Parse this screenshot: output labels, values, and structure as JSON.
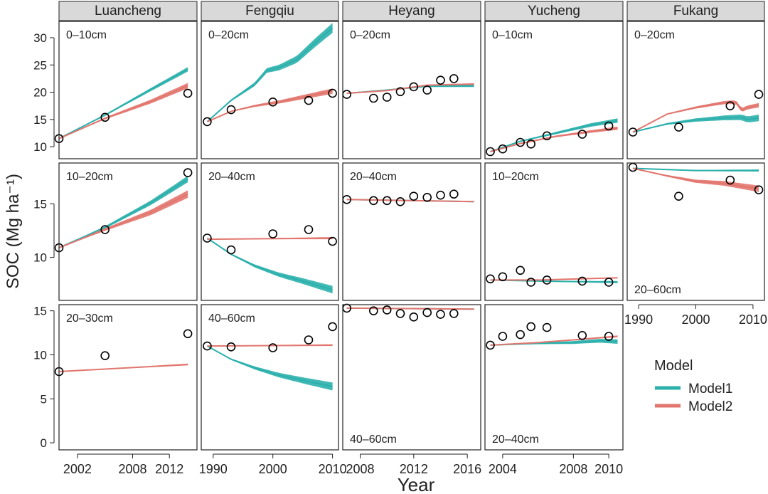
{
  "colors": {
    "model1": "#2BB0AC",
    "model2": "#E2766E",
    "strip_bg": "#D9D9D9",
    "obs": "#000000"
  },
  "axis_title_y": "SOC (Mg ha⁻¹)",
  "axis_title_x": "Year",
  "legend": {
    "title": "Model",
    "items": [
      "Model1",
      "Model2"
    ]
  },
  "chart_data": {
    "type": "line",
    "facets": [
      "Luancheng",
      "Fengqiu",
      "Heyang",
      "Yucheng",
      "Fukang"
    ],
    "columns": [
      {
        "site": "Luancheng",
        "xlim": [
          2000,
          2015
        ],
        "xticks": [
          2002,
          2008,
          2012
        ]
      },
      {
        "site": "Fengqiu",
        "xlim": [
          1988,
          2011
        ],
        "xticks": [
          1990,
          2000,
          2010
        ]
      },
      {
        "site": "Heyang",
        "xlim": [
          2006.7,
          2017
        ],
        "xticks": [
          2008,
          2012,
          2016
        ]
      },
      {
        "site": "Yucheng",
        "xlim": [
          2003,
          2010.8
        ],
        "xticks": [
          2004,
          2008,
          2010
        ]
      },
      {
        "site": "Fukang",
        "xlim": [
          1988,
          2012
        ],
        "xticks": [
          1990,
          2000,
          2010
        ]
      }
    ],
    "rows": [
      {
        "ylim": [
          7.8,
          33
        ],
        "yticks": [
          10,
          15,
          20,
          25,
          30
        ]
      },
      {
        "ylim": [
          6,
          18.8
        ],
        "yticks": [
          10,
          15
        ]
      },
      {
        "ylim": [
          -0.8,
          15.7
        ],
        "yticks": [
          0,
          5,
          10,
          15
        ]
      }
    ],
    "panels": [
      {
        "site": "Luancheng",
        "row": 0,
        "depth": "0–10cm",
        "depth_pos": "top",
        "model1": {
          "x": [
            2000,
            2005,
            2010,
            2014
          ],
          "y": [
            11.5,
            15.8,
            20.5,
            24.2
          ],
          "band": 0.4
        },
        "model2": {
          "x": [
            2000,
            2005,
            2010,
            2014
          ],
          "y": [
            11.5,
            15.2,
            18.3,
            21.2
          ],
          "band": 0.5
        },
        "observed": {
          "x": [
            2000,
            2005,
            2014
          ],
          "y": [
            11.5,
            15.4,
            19.8
          ]
        }
      },
      {
        "site": "Luancheng",
        "row": 1,
        "depth": "10–20cm",
        "depth_pos": "top",
        "model1": {
          "x": [
            2000,
            2005,
            2010,
            2014
          ],
          "y": [
            10.9,
            12.8,
            15.1,
            17.3
          ],
          "band": 0.3
        },
        "model2": {
          "x": [
            2000,
            2005,
            2010,
            2014
          ],
          "y": [
            10.9,
            12.6,
            14.2,
            15.9
          ],
          "band": 0.35
        },
        "observed": {
          "x": [
            2000,
            2005,
            2014
          ],
          "y": [
            10.9,
            12.6,
            17.9
          ]
        }
      },
      {
        "site": "Luancheng",
        "row": 2,
        "depth": "20–30cm",
        "depth_pos": "top",
        "model2": {
          "x": [
            2000,
            2014
          ],
          "y": [
            8.1,
            8.9
          ],
          "band": 0.1
        },
        "observed": {
          "x": [
            2000,
            2005,
            2014
          ],
          "y": [
            8.1,
            9.9,
            12.4
          ]
        }
      },
      {
        "site": "Fengqiu",
        "row": 0,
        "depth": "0–20cm",
        "depth_pos": "top",
        "model1": {
          "x": [
            1989,
            1993,
            1997,
            1999,
            2001,
            2004,
            2007,
            2010
          ],
          "y": [
            14.6,
            18.5,
            21.5,
            24,
            24.5,
            26,
            29,
            31.8
          ],
          "band": 0.9
        },
        "model2": {
          "x": [
            1989,
            1993,
            1997,
            2001,
            2005,
            2010
          ],
          "y": [
            14.6,
            16.5,
            17.5,
            18.2,
            19.1,
            20.2
          ],
          "band": 0.5
        },
        "observed": {
          "x": [
            1989,
            1993,
            2000,
            2006,
            2010
          ],
          "y": [
            14.6,
            16.8,
            18.2,
            18.5,
            19.8
          ]
        }
      },
      {
        "site": "Fengqiu",
        "row": 1,
        "depth": "20–40cm",
        "depth_pos": "top",
        "model1": {
          "x": [
            1989,
            1993,
            1997,
            2001,
            2005,
            2010
          ],
          "y": [
            11.8,
            10.3,
            9.2,
            8.4,
            7.8,
            7.0
          ],
          "band": 0.35
        },
        "model2": {
          "x": [
            1989,
            2010
          ],
          "y": [
            11.7,
            11.8
          ],
          "band": 0.1
        },
        "observed": {
          "x": [
            1989,
            1993,
            2000,
            2006,
            2010
          ],
          "y": [
            11.8,
            10.7,
            12.2,
            12.6,
            11.5
          ]
        }
      },
      {
        "site": "Fengqiu",
        "row": 2,
        "depth": "40–60cm",
        "depth_pos": "top",
        "model1": {
          "x": [
            1989,
            1993,
            1997,
            2001,
            2005,
            2010
          ],
          "y": [
            11.0,
            9.5,
            8.5,
            7.7,
            7.1,
            6.4
          ],
          "band": 0.45
        },
        "model2": {
          "x": [
            1989,
            2010
          ],
          "y": [
            11.0,
            11.1
          ],
          "band": 0.1
        },
        "observed": {
          "x": [
            1989,
            1993,
            2000,
            2006,
            2010
          ],
          "y": [
            11.0,
            10.9,
            10.8,
            11.7,
            13.2
          ]
        }
      },
      {
        "site": "Heyang",
        "row": 0,
        "depth": "0–20cm",
        "depth_pos": "top",
        "model1": {
          "x": [
            2007,
            2010,
            2013,
            2016.5
          ],
          "y": [
            19.8,
            20.4,
            21.1,
            21.2
          ],
          "band": 0.25
        },
        "model2": {
          "x": [
            2007,
            2010,
            2013,
            2016.5
          ],
          "y": [
            19.8,
            20.3,
            21.3,
            21.5
          ],
          "band": 0.15
        },
        "observed": {
          "x": [
            2007,
            2009,
            2010,
            2011,
            2012,
            2013,
            2014,
            2015
          ],
          "y": [
            19.6,
            18.9,
            19.1,
            20.1,
            21.0,
            20.4,
            22.2,
            22.5
          ]
        }
      },
      {
        "site": "Heyang",
        "row": 1,
        "depth": "20–40cm",
        "depth_pos": "top",
        "model1": {
          "x": [
            2007,
            2016.5
          ],
          "y": [
            15.4,
            15.2
          ],
          "band": 0.05
        },
        "model2": {
          "x": [
            2007,
            2016.5
          ],
          "y": [
            15.4,
            15.2
          ],
          "band": 0.05
        },
        "observed": {
          "x": [
            2007,
            2009,
            2010,
            2011,
            2012,
            2013,
            2014,
            2015
          ],
          "y": [
            15.4,
            15.3,
            15.3,
            15.2,
            15.7,
            15.6,
            15.8,
            15.9
          ]
        }
      },
      {
        "site": "Heyang",
        "row": 2,
        "depth": "40–60cm",
        "depth_pos": "bottom",
        "model1": {
          "x": [
            2007,
            2016.5
          ],
          "y": [
            15.3,
            15.2
          ],
          "band": 0.05
        },
        "model2": {
          "x": [
            2007,
            2016.5
          ],
          "y": [
            15.3,
            15.2
          ],
          "band": 0.05
        },
        "observed": {
          "x": [
            2007,
            2009,
            2010,
            2011,
            2012,
            2013,
            2014,
            2015
          ],
          "y": [
            15.3,
            15.0,
            15.1,
            14.7,
            14.3,
            14.8,
            14.6,
            14.7
          ]
        }
      },
      {
        "site": "Yucheng",
        "row": 0,
        "depth": "0–10cm",
        "depth_pos": "top",
        "model1": {
          "x": [
            2003.3,
            2005,
            2007,
            2009,
            2010.5
          ],
          "y": [
            9.1,
            11.0,
            12.5,
            14.0,
            14.8
          ],
          "band": 0.4
        },
        "model2": {
          "x": [
            2003.3,
            2005,
            2007,
            2009,
            2010.5
          ],
          "y": [
            9.1,
            10.6,
            11.9,
            12.8,
            13.4
          ],
          "band": 0.3
        },
        "observed": {
          "x": [
            2003.3,
            2004,
            2005,
            2005.6,
            2006.5,
            2008.5,
            2010
          ],
          "y": [
            9.1,
            9.6,
            10.8,
            10.5,
            12.0,
            12.3,
            13.8
          ]
        }
      },
      {
        "site": "Yucheng",
        "row": 1,
        "depth": "10–20cm",
        "depth_pos": "top",
        "model1": {
          "x": [
            2003.3,
            2006,
            2010.5
          ],
          "y": [
            7.9,
            7.8,
            7.7
          ],
          "band": 0.1
        },
        "model2": {
          "x": [
            2003.3,
            2006,
            2010.5
          ],
          "y": [
            7.9,
            7.9,
            8.1
          ],
          "band": 0.05
        },
        "observed": {
          "x": [
            2003.3,
            2004,
            2005,
            2005.6,
            2006.5,
            2008.5,
            2010
          ],
          "y": [
            8.0,
            8.2,
            8.8,
            7.7,
            7.9,
            7.8,
            7.7
          ]
        }
      },
      {
        "site": "Yucheng",
        "row": 2,
        "depth": "20–40cm",
        "depth_pos": "bottom",
        "model1": {
          "x": [
            2003.3,
            2006,
            2008,
            2009.5,
            2010.5
          ],
          "y": [
            11.1,
            11.3,
            11.4,
            11.6,
            11.5
          ],
          "band": 0.25
        },
        "model2": {
          "x": [
            2003.3,
            2006,
            2008,
            2010.5
          ],
          "y": [
            11.1,
            11.4,
            11.7,
            12.1
          ],
          "band": 0.1
        },
        "observed": {
          "x": [
            2003.3,
            2004,
            2005,
            2005.6,
            2006.5,
            2008.5,
            2010
          ],
          "y": [
            11.1,
            12.1,
            12.3,
            13.2,
            13.1,
            12.2,
            12.1
          ]
        }
      },
      {
        "site": "Fukang",
        "row": 0,
        "depth": "0–20cm",
        "depth_pos": "top",
        "model1": {
          "x": [
            1989,
            1995,
            2000,
            2005,
            2008,
            2009,
            2011
          ],
          "y": [
            12.7,
            14.2,
            14.9,
            15.3,
            15.4,
            15.0,
            15.3
          ],
          "band": 0.6
        },
        "model2": {
          "x": [
            1989,
            1995,
            2000,
            2005,
            2007,
            2008,
            2009,
            2011
          ],
          "y": [
            12.7,
            16.0,
            17.2,
            18.1,
            18.2,
            16.7,
            17.2,
            17.6
          ],
          "band": 0.4
        },
        "observed": {
          "x": [
            1989,
            1997,
            2006,
            2011
          ],
          "y": [
            12.7,
            13.6,
            17.5,
            19.6
          ]
        }
      },
      {
        "site": "Fukang",
        "row": 1,
        "depth": "20–60cm",
        "depth_pos": "bottom",
        "model1": {
          "x": [
            1989,
            2000,
            2011
          ],
          "y": [
            18.3,
            18.1,
            18.1
          ],
          "band": 0.1
        },
        "model2": {
          "x": [
            1989,
            1995,
            2000,
            2005,
            2011
          ],
          "y": [
            18.3,
            17.6,
            17.1,
            16.9,
            16.4
          ],
          "band": 0.3
        },
        "observed": {
          "x": [
            1989,
            1997,
            2006,
            2011
          ],
          "y": [
            18.4,
            15.7,
            17.2,
            16.3
          ]
        }
      }
    ]
  }
}
